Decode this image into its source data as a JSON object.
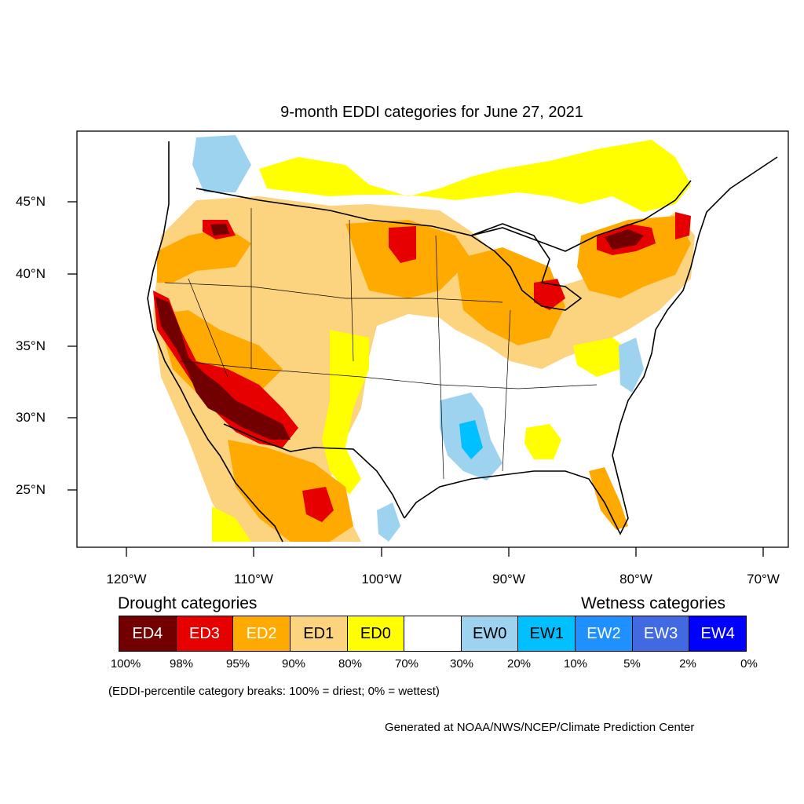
{
  "title": "9-month EDDI categories for June 27, 2021",
  "latitude_labels": [
    "45°N",
    "40°N",
    "35°N",
    "30°N",
    "25°N"
  ],
  "longitude_labels": [
    "120°W",
    "110°W",
    "100°W",
    "90°W",
    "80°W",
    "70°W"
  ],
  "legend": {
    "drought_heading": "Drought categories",
    "wetness_heading": "Wetness categories",
    "categories": [
      {
        "label": "ED4",
        "color": "#730000",
        "text_color": "#ffffff"
      },
      {
        "label": "ED3",
        "color": "#e60000",
        "text_color": "#ffffff"
      },
      {
        "label": "ED2",
        "color": "#ffaa00",
        "text_color": "#ffffff"
      },
      {
        "label": "ED1",
        "color": "#fcd37f",
        "text_color": "#000000"
      },
      {
        "label": "ED0",
        "color": "#ffff00",
        "text_color": "#000000"
      },
      {
        "label": "",
        "color": "#ffffff",
        "text_color": "#000000"
      },
      {
        "label": "EW0",
        "color": "#9ed3f0",
        "text_color": "#000000"
      },
      {
        "label": "EW1",
        "color": "#00c0ff",
        "text_color": "#000000"
      },
      {
        "label": "EW2",
        "color": "#1e90ff",
        "text_color": "#ffffff"
      },
      {
        "label": "EW3",
        "color": "#4169e1",
        "text_color": "#ffffff"
      },
      {
        "label": "EW4",
        "color": "#0000ff",
        "text_color": "#ffffff"
      }
    ],
    "percentiles": [
      "100%",
      "98%",
      "95%",
      "90%",
      "80%",
      "70%",
      "30%",
      "20%",
      "10%",
      "5%",
      "2%",
      "0%"
    ]
  },
  "note": "(EDDI-percentile category breaks: 100% = driest; 0% = wettest)",
  "credit": "Generated at NOAA/NWS/NCEP/Climate Prediction Center"
}
